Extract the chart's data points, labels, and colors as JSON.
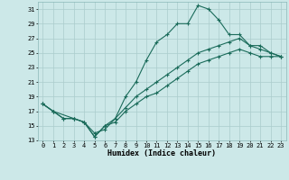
{
  "xlabel": "Humidex (Indice chaleur)",
  "bg_color": "#cce8e8",
  "grid_color": "#aacccc",
  "line_color": "#1a6b5a",
  "xlim": [
    -0.5,
    23.5
  ],
  "ylim": [
    13,
    32
  ],
  "yticks": [
    13,
    15,
    17,
    19,
    21,
    23,
    25,
    27,
    29,
    31
  ],
  "xticks": [
    0,
    1,
    2,
    3,
    4,
    5,
    6,
    7,
    8,
    9,
    10,
    11,
    12,
    13,
    14,
    15,
    16,
    17,
    18,
    19,
    20,
    21,
    22,
    23
  ],
  "line1_x": [
    0,
    1,
    3,
    4,
    5,
    6,
    7,
    8,
    9,
    10,
    11,
    12,
    13,
    14,
    15,
    16,
    17,
    18,
    19,
    20,
    21,
    22,
    23
  ],
  "line1_y": [
    18,
    17,
    16,
    15.5,
    14,
    14.5,
    16,
    19,
    21,
    24,
    26.5,
    27.5,
    29,
    29,
    31.5,
    31,
    29.5,
    27.5,
    27.5,
    26,
    26,
    25,
    24.5
  ],
  "line2_x": [
    0,
    1,
    2,
    3,
    4,
    5,
    6,
    7,
    8,
    9,
    10,
    11,
    12,
    13,
    14,
    15,
    16,
    17,
    18,
    19,
    20,
    21,
    22,
    23
  ],
  "line2_y": [
    18,
    17,
    16,
    16,
    15.5,
    13.5,
    15,
    16,
    17.5,
    19,
    20,
    21,
    22,
    23,
    24,
    25,
    25.5,
    26,
    26.5,
    27,
    26,
    25.5,
    25,
    24.5
  ],
  "line3_x": [
    0,
    1,
    2,
    3,
    4,
    5,
    6,
    7,
    8,
    9,
    10,
    11,
    12,
    13,
    14,
    15,
    16,
    17,
    18,
    19,
    20,
    21,
    22,
    23
  ],
  "line3_y": [
    18,
    17,
    16,
    16,
    15.5,
    13.5,
    15,
    15.5,
    17,
    18,
    19,
    19.5,
    20.5,
    21.5,
    22.5,
    23.5,
    24,
    24.5,
    25,
    25.5,
    25,
    24.5,
    24.5,
    24.5
  ],
  "tick_fontsize": 5,
  "xlabel_fontsize": 6
}
